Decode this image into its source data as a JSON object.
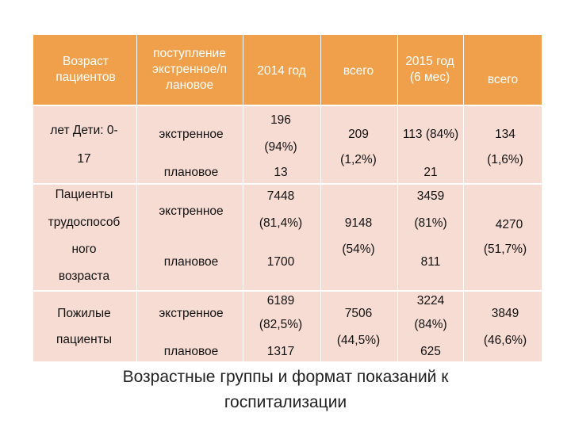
{
  "header": {
    "age": [
      "Возраст",
      "пациентов"
    ],
    "admission": [
      "поступление",
      "экстренное/п",
      "лановое"
    ],
    "y2014": "2014 год",
    "total1": "всего",
    "y2015": [
      "2015 год",
      "(6 мес)"
    ],
    "total2": "всего"
  },
  "groups": [
    {
      "name": [
        "лет Дети: 0-",
        "17"
      ],
      "emergency_label": "экстренное",
      "planned_label": "плановое",
      "emergency_2014": [
        "196",
        "(94%)"
      ],
      "planned_2014": "13",
      "total_2014": [
        "209",
        "(1,2%)"
      ],
      "emergency_2015": "113 (84%)",
      "planned_2015": "21",
      "total_2015": [
        "134",
        "(1,6%)"
      ]
    },
    {
      "name": [
        "Пациенты",
        "трудоспособ",
        "ного",
        "возраста"
      ],
      "emergency_label": "экстренное",
      "planned_label": "плановое",
      "emergency_2014": [
        "7448",
        "(81,4%)"
      ],
      "planned_2014": "1700",
      "total_2014": [
        "9148",
        "(54%)"
      ],
      "emergency_2015": [
        "3459",
        "(81%)"
      ],
      "planned_2015": "811",
      "total_2015": [
        "4270",
        "(51,7%)"
      ]
    },
    {
      "name": [
        "Пожилые",
        "пациенты"
      ],
      "emergency_label": "экстренное",
      "planned_label": "плановое",
      "emergency_2014": [
        "6189",
        "(82,5%)"
      ],
      "planned_2014": "1317",
      "total_2014": [
        "7506",
        "(44,5%)"
      ],
      "emergency_2015": [
        "3224",
        "(84%)"
      ],
      "planned_2015": "625",
      "total_2015": [
        "3849",
        "(46,6%)"
      ]
    }
  ],
  "caption": [
    "Возрастные группы и формат показаний к",
    "госпитализации"
  ],
  "colors": {
    "header_bg": "#f0a04b",
    "body_bg": "#f7dcd3"
  }
}
